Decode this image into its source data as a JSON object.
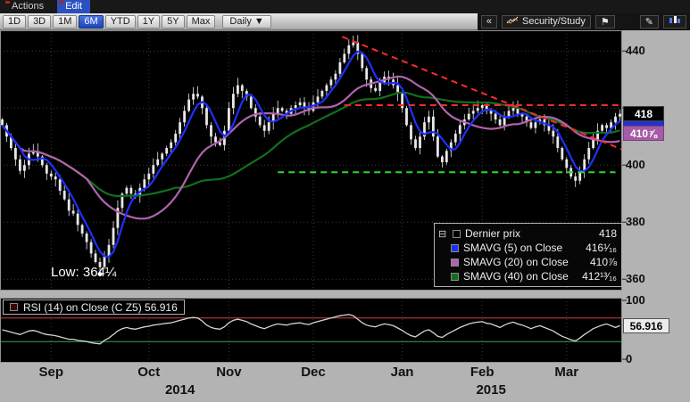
{
  "menubar": {
    "items": [
      {
        "label": "Actions"
      },
      {
        "label": "Edit"
      }
    ]
  },
  "toolbar": {
    "range_buttons": [
      "1D",
      "3D",
      "1M",
      "6M",
      "YTD",
      "1Y",
      "5Y",
      "Max"
    ],
    "active_range": "6M",
    "interval_button": "Daily ▼",
    "collapse_button": "«",
    "security_study_label": "Security/Study",
    "flag_glyph": "⚑",
    "annotate_glyph": "✎"
  },
  "legend": {
    "collapse_glyph": "⊟",
    "rows": [
      {
        "label": "Dernier prix",
        "value": "418"
      },
      {
        "label": "SMAVG (5) on Close",
        "value": "416¹⁄₁₆"
      },
      {
        "label": "SMAVG (20) on Close",
        "value": "410⅞"
      },
      {
        "label": "SMAVG (40) on Close",
        "value": "412¹³⁄₁₆"
      }
    ]
  },
  "annotations": {
    "low_label": "Low: 364¼"
  },
  "axis_boxes": {
    "last_price": "418",
    "smavg20": "410⅞",
    "rsi_value": "56.916"
  },
  "rsi_panel": {
    "label": "RSI (14) on Close (C Z5) 56.916",
    "y_top": "100",
    "y_bottom": "0"
  },
  "y_axis_labels": [
    {
      "text": "440",
      "price": 440
    },
    {
      "text": "400",
      "price": 400
    },
    {
      "text": "380",
      "price": 380
    },
    {
      "text": "360",
      "price": 360
    }
  ],
  "x_axis": {
    "months": [
      {
        "label": "Sep",
        "day": 11
      },
      {
        "label": "Oct",
        "day": 33
      },
      {
        "label": "Nov",
        "day": 51
      },
      {
        "label": "Dec",
        "day": 70
      },
      {
        "label": "Jan",
        "day": 90
      },
      {
        "label": "Feb",
        "day": 108
      },
      {
        "label": "Mar",
        "day": 127
      }
    ],
    "years": [
      {
        "label": "2014",
        "day": 40
      },
      {
        "label": "2015",
        "day": 110
      }
    ]
  },
  "chart_data": {
    "type": "candlestick",
    "title": "",
    "price_axis": {
      "range": [
        356,
        447.25
      ],
      "gridlines": [
        360,
        380,
        400,
        420,
        440
      ]
    },
    "month_tick_days": [
      11,
      33,
      51,
      70,
      90,
      108,
      127
    ],
    "closes": [
      414,
      410,
      406,
      402,
      398,
      400,
      404,
      405,
      403,
      400,
      397,
      396,
      395,
      391,
      388,
      384,
      383,
      379,
      376,
      373,
      369,
      366,
      364.25,
      368,
      372,
      378,
      385,
      390,
      392,
      390,
      389,
      392,
      395,
      397,
      400,
      402,
      404,
      406,
      408,
      411,
      415,
      419,
      423,
      425,
      424,
      420,
      414,
      410,
      408,
      407,
      412,
      420,
      425,
      428,
      426,
      424,
      420,
      417,
      414,
      412,
      415,
      418,
      420,
      419,
      418,
      420,
      421,
      422,
      420,
      419,
      422,
      424,
      426,
      428,
      430,
      432,
      436,
      439,
      442,
      443,
      439,
      434,
      430,
      427,
      426,
      429,
      431,
      430,
      428,
      425,
      420,
      414,
      409,
      406,
      410,
      415,
      417,
      410,
      403,
      401,
      405,
      408,
      411,
      414,
      416,
      418,
      419,
      420,
      421,
      419,
      418,
      416,
      414,
      417,
      419,
      420,
      418,
      417,
      415,
      413,
      415,
      416,
      414,
      412,
      410,
      406,
      402,
      399,
      396,
      394.5,
      398,
      402,
      406,
      409,
      412,
      414,
      413,
      415,
      417,
      418
    ],
    "moving_averages": [
      {
        "name": "SMAVG (5) on Close",
        "window": 5,
        "last_value": 416.0625
      },
      {
        "name": "SMAVG (20) on Close",
        "window": 20,
        "last_value": 410.875
      },
      {
        "name": "SMAVG (40) on Close",
        "window": 40,
        "last_value": 412.8125
      }
    ],
    "last_price": 418,
    "low_point": {
      "label": "Low: 364¼",
      "price": 364.25,
      "day": 22
    },
    "trendlines": [
      {
        "type": "downtrend",
        "d1": 76.5,
        "p1": 445,
        "d2": 139.5,
        "p2": 405.5,
        "color": "#ff2a2a"
      },
      {
        "type": "resistance",
        "d1": 77,
        "p1": 421,
        "d2": 139.5,
        "p2": 421,
        "color": "#ff2a2a"
      },
      {
        "type": "support",
        "d1": 62,
        "p1": 397.5,
        "d2": 138,
        "p2": 397.5,
        "color": "#2fd82f"
      }
    ],
    "rsi": [
      50,
      48,
      46,
      44,
      42,
      45,
      48,
      49,
      47,
      44,
      42,
      41,
      40,
      38,
      36,
      34,
      34,
      32,
      31,
      30,
      28,
      27,
      26,
      32,
      36,
      42,
      48,
      52,
      54,
      52,
      51,
      53,
      55,
      56,
      58,
      59,
      60,
      61,
      62,
      64,
      66,
      68,
      70,
      71,
      70,
      65,
      58,
      54,
      52,
      51,
      55,
      62,
      66,
      68,
      66,
      64,
      60,
      57,
      54,
      52,
      55,
      58,
      60,
      59,
      58,
      60,
      61,
      62,
      60,
      59,
      62,
      64,
      66,
      68,
      70,
      72,
      74,
      75,
      76,
      74,
      68,
      62,
      58,
      56,
      55,
      58,
      60,
      59,
      57,
      53,
      49,
      44,
      40,
      38,
      43,
      48,
      50,
      45,
      39,
      37,
      42,
      46,
      50,
      54,
      57,
      60,
      62,
      63,
      64,
      61,
      60,
      57,
      54,
      58,
      61,
      63,
      60,
      58,
      55,
      52,
      55,
      57,
      54,
      51,
      48,
      43,
      39,
      36,
      33,
      31,
      36,
      42,
      47,
      52,
      55,
      58,
      60,
      57,
      54,
      56.916
    ],
    "rsi_axis": {
      "range": [
        0,
        100
      ],
      "upper_threshold": 70,
      "lower_threshold": 30,
      "last_value": 56.916
    },
    "colors": {
      "candle": "#e8e8e8",
      "sma5": "#1e30ff",
      "sma20": "#b163ae",
      "sma40": "#11701c",
      "trend_red": "#ff2a2a",
      "support_green": "#2fd82f",
      "rsi_line": "#d4d4d4",
      "rsi_upper": "#d04040",
      "rsi_lower": "#2fae4f",
      "plot_background": "#000000",
      "frame_background": "#b3b3b3"
    }
  }
}
